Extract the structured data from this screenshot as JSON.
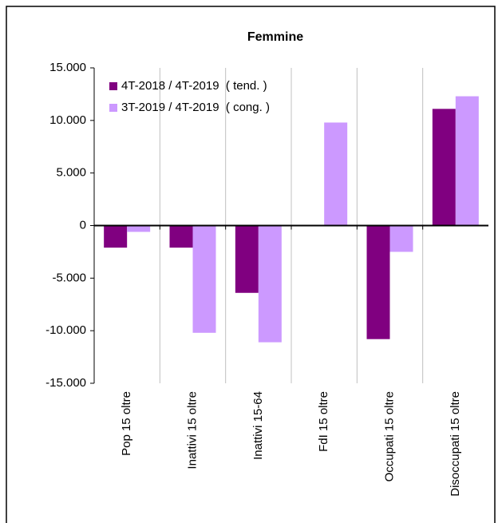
{
  "chart_data": {
    "type": "bar",
    "title": "Femmine",
    "categories": [
      "Pop 15 oltre",
      "Inattivi 15 oltre",
      "Inattivi 15-64",
      "FdI 15 oltre",
      "Occupati 15 oltre",
      "Disoccupati 15 oltre"
    ],
    "series": [
      {
        "name": "4T-2018 / 4T-2019  ( tend. )",
        "color": "#800080",
        "values": [
          -2100,
          -2100,
          -6400,
          0,
          -10800,
          11100
        ]
      },
      {
        "name": "3T-2019 / 4T-2019  ( cong. )",
        "color": "#cc99ff",
        "values": [
          -600,
          -10200,
          -11100,
          9800,
          -2500,
          12300
        ]
      }
    ],
    "ylim": [
      -15000,
      15000
    ],
    "yticks": [
      {
        "value": -15000,
        "label": "-15.000"
      },
      {
        "value": -10000,
        "label": "-10.000"
      },
      {
        "value": -5000,
        "label": "-5.000"
      },
      0,
      {
        "value": 5000,
        "label": "5.000"
      },
      {
        "value": 10000,
        "label": "10.000"
      },
      {
        "value": 15000,
        "label": "15.000"
      }
    ],
    "legend": "top-left",
    "grid": false
  }
}
